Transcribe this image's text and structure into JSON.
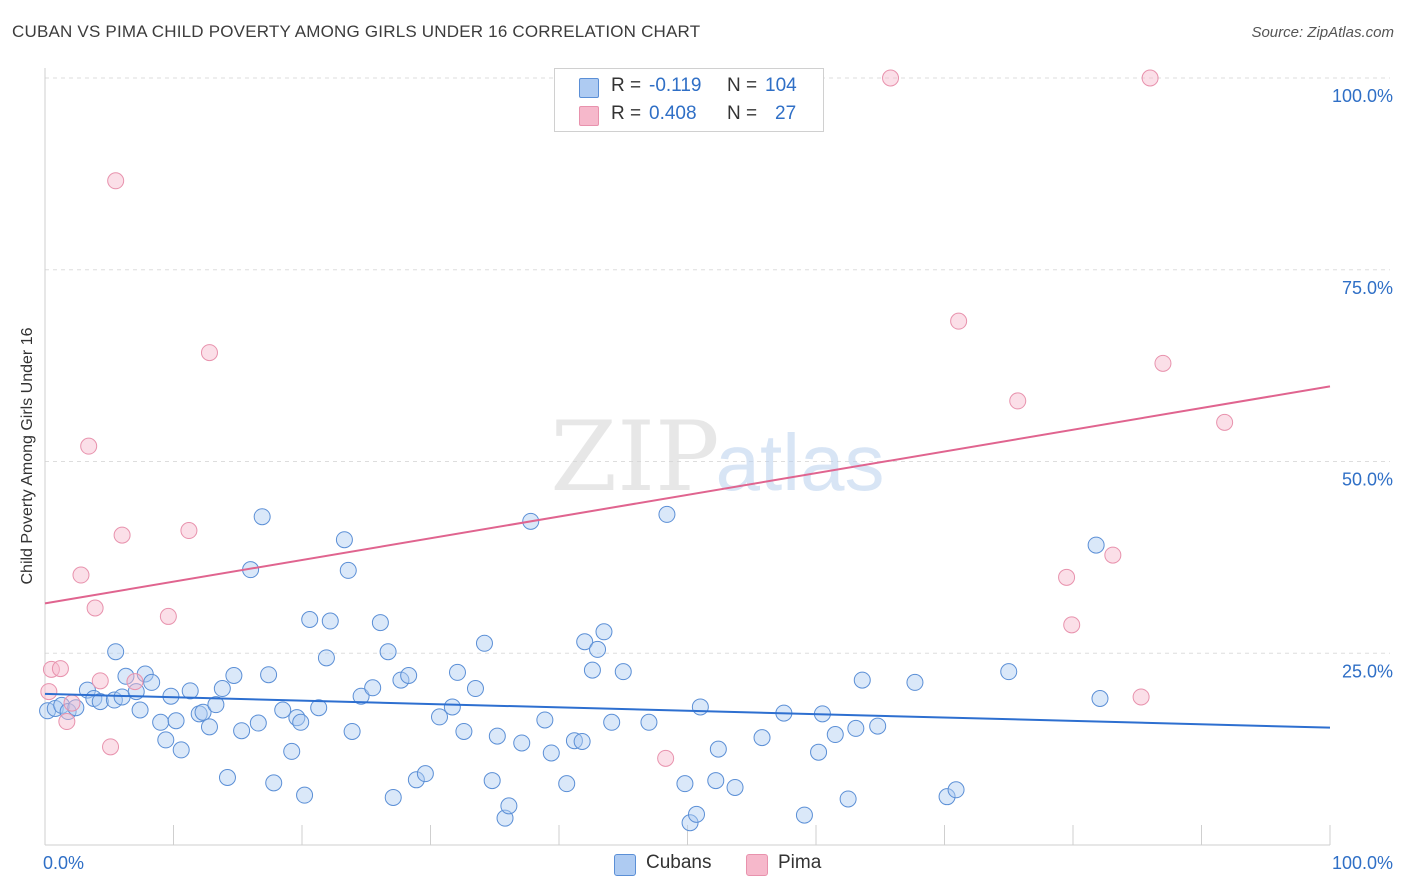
{
  "header": {
    "title": "CUBAN VS PIMA CHILD POVERTY AMONG GIRLS UNDER 16 CORRELATION CHART",
    "source": "Source: ZipAtlas.com"
  },
  "watermark": {
    "zip": "ZIP",
    "atlas": "atlas"
  },
  "stats": [
    {
      "r_label": "R =",
      "r_value": "-0.119",
      "n_label": "N =",
      "n_value": "104",
      "color": "#aecbf2"
    },
    {
      "r_label": "R =",
      "r_value": "0.408",
      "n_label": "N =",
      "n_value": "27",
      "color": "#f6b8cb"
    }
  ],
  "legend": [
    {
      "label": "Cubans",
      "color": "#aecbf2"
    },
    {
      "label": "Pima",
      "color": "#f6b8cb"
    }
  ],
  "colors": {
    "cubans_fill": "rgba(174,203,242,0.45)",
    "cubans_stroke": "#5b8fd6",
    "cubans_line": "#2d6fd0",
    "pima_fill": "rgba(246,184,203,0.45)",
    "pima_stroke": "#e892ad",
    "pima_line": "#e0648f",
    "tick_label": "#2f6fc6",
    "grid": "#dddddd"
  },
  "chart_data": {
    "type": "scatter",
    "title": "CUBAN VS PIMA CHILD POVERTY AMONG GIRLS UNDER 16 CORRELATION CHART",
    "xlabel": "",
    "ylabel": "Child Poverty Among Girls Under 16",
    "xlim": [
      0,
      100
    ],
    "ylim": [
      0,
      100
    ],
    "x_tick_labels": [
      "0.0%",
      "100.0%"
    ],
    "y_tick_labels": [
      "25.0%",
      "50.0%",
      "75.0%",
      "100.0%"
    ],
    "y_ticks": [
      25,
      50,
      75,
      100
    ],
    "grid": true,
    "legend_position": "bottom-center",
    "series": [
      {
        "name": "Cubans",
        "r": -0.119,
        "n": 104,
        "trend": {
          "x": [
            0,
            100
          ],
          "y": [
            19.7,
            15.3
          ]
        },
        "points": [
          [
            0.2,
            17.5
          ],
          [
            0.8,
            17.8
          ],
          [
            1.3,
            18.2
          ],
          [
            1.8,
            17.4
          ],
          [
            2.4,
            17.9
          ],
          [
            3.3,
            20.2
          ],
          [
            3.8,
            19.1
          ],
          [
            4.3,
            18.7
          ],
          [
            5.4,
            18.9
          ],
          [
            6.0,
            19.3
          ],
          [
            5.5,
            25.2
          ],
          [
            6.3,
            22.0
          ],
          [
            7.1,
            20.0
          ],
          [
            7.4,
            17.6
          ],
          [
            7.8,
            22.3
          ],
          [
            8.3,
            21.2
          ],
          [
            9.0,
            16.0
          ],
          [
            9.4,
            13.7
          ],
          [
            9.8,
            19.4
          ],
          [
            10.2,
            16.2
          ],
          [
            10.6,
            12.4
          ],
          [
            11.3,
            20.1
          ],
          [
            12.0,
            17.1
          ],
          [
            12.3,
            17.3
          ],
          [
            12.8,
            15.4
          ],
          [
            13.3,
            18.3
          ],
          [
            13.8,
            20.4
          ],
          [
            14.2,
            8.8
          ],
          [
            14.7,
            22.1
          ],
          [
            15.3,
            14.9
          ],
          [
            16.0,
            35.9
          ],
          [
            16.6,
            15.9
          ],
          [
            16.9,
            42.8
          ],
          [
            17.4,
            22.2
          ],
          [
            17.8,
            8.1
          ],
          [
            18.5,
            17.6
          ],
          [
            19.2,
            12.2
          ],
          [
            19.6,
            16.6
          ],
          [
            19.9,
            16.0
          ],
          [
            20.2,
            6.5
          ],
          [
            20.6,
            29.4
          ],
          [
            21.3,
            17.9
          ],
          [
            21.9,
            24.4
          ],
          [
            22.2,
            29.2
          ],
          [
            23.3,
            39.8
          ],
          [
            23.6,
            35.8
          ],
          [
            23.9,
            14.8
          ],
          [
            24.6,
            19.4
          ],
          [
            25.5,
            20.5
          ],
          [
            26.1,
            29.0
          ],
          [
            26.7,
            25.2
          ],
          [
            27.1,
            6.2
          ],
          [
            27.7,
            21.5
          ],
          [
            28.3,
            22.1
          ],
          [
            28.9,
            8.5
          ],
          [
            29.6,
            9.3
          ],
          [
            30.7,
            16.7
          ],
          [
            31.7,
            18.0
          ],
          [
            32.1,
            22.5
          ],
          [
            32.6,
            14.8
          ],
          [
            33.5,
            20.4
          ],
          [
            34.2,
            26.3
          ],
          [
            34.8,
            8.4
          ],
          [
            35.2,
            14.2
          ],
          [
            35.8,
            3.5
          ],
          [
            36.1,
            5.1
          ],
          [
            37.1,
            13.3
          ],
          [
            37.8,
            42.2
          ],
          [
            38.9,
            16.3
          ],
          [
            39.4,
            12.0
          ],
          [
            40.6,
            8.0
          ],
          [
            41.2,
            13.6
          ],
          [
            41.8,
            13.5
          ],
          [
            42.0,
            26.5
          ],
          [
            42.6,
            22.8
          ],
          [
            43.0,
            25.5
          ],
          [
            43.5,
            27.8
          ],
          [
            44.1,
            16.0
          ],
          [
            45.0,
            22.6
          ],
          [
            47.0,
            16.0
          ],
          [
            48.4,
            43.1
          ],
          [
            49.8,
            8.0
          ],
          [
            50.2,
            2.9
          ],
          [
            50.7,
            4.0
          ],
          [
            51.0,
            18.0
          ],
          [
            52.2,
            8.4
          ],
          [
            52.4,
            12.5
          ],
          [
            53.7,
            7.5
          ],
          [
            55.8,
            14.0
          ],
          [
            57.5,
            17.2
          ],
          [
            59.1,
            3.9
          ],
          [
            60.2,
            12.1
          ],
          [
            60.5,
            17.1
          ],
          [
            61.5,
            14.4
          ],
          [
            62.5,
            6.0
          ],
          [
            63.1,
            15.2
          ],
          [
            63.6,
            21.5
          ],
          [
            64.8,
            15.5
          ],
          [
            67.7,
            21.2
          ],
          [
            70.2,
            6.3
          ],
          [
            70.9,
            7.2
          ],
          [
            75.0,
            22.6
          ],
          [
            81.8,
            39.1
          ],
          [
            82.1,
            19.1
          ]
        ]
      },
      {
        "name": "Pima",
        "r": 0.408,
        "n": 27,
        "trend": {
          "x": [
            0,
            100
          ],
          "y": [
            31.5,
            59.8
          ]
        },
        "points": [
          [
            0.3,
            20.0
          ],
          [
            0.5,
            22.9
          ],
          [
            1.2,
            23.0
          ],
          [
            1.7,
            16.1
          ],
          [
            2.1,
            18.5
          ],
          [
            2.8,
            35.2
          ],
          [
            3.4,
            52.0
          ],
          [
            3.9,
            30.9
          ],
          [
            4.3,
            21.4
          ],
          [
            5.1,
            12.8
          ],
          [
            5.5,
            86.6
          ],
          [
            6.0,
            40.4
          ],
          [
            7.0,
            21.3
          ],
          [
            9.6,
            29.8
          ],
          [
            11.2,
            41.0
          ],
          [
            12.8,
            64.2
          ],
          [
            48.3,
            11.3
          ],
          [
            65.8,
            100.0
          ],
          [
            71.1,
            68.3
          ],
          [
            75.7,
            57.9
          ],
          [
            79.5,
            34.9
          ],
          [
            79.9,
            28.7
          ],
          [
            83.1,
            37.8
          ],
          [
            85.3,
            19.3
          ],
          [
            86.0,
            100.0
          ],
          [
            87.0,
            62.8
          ],
          [
            91.8,
            55.1
          ]
        ]
      }
    ]
  }
}
